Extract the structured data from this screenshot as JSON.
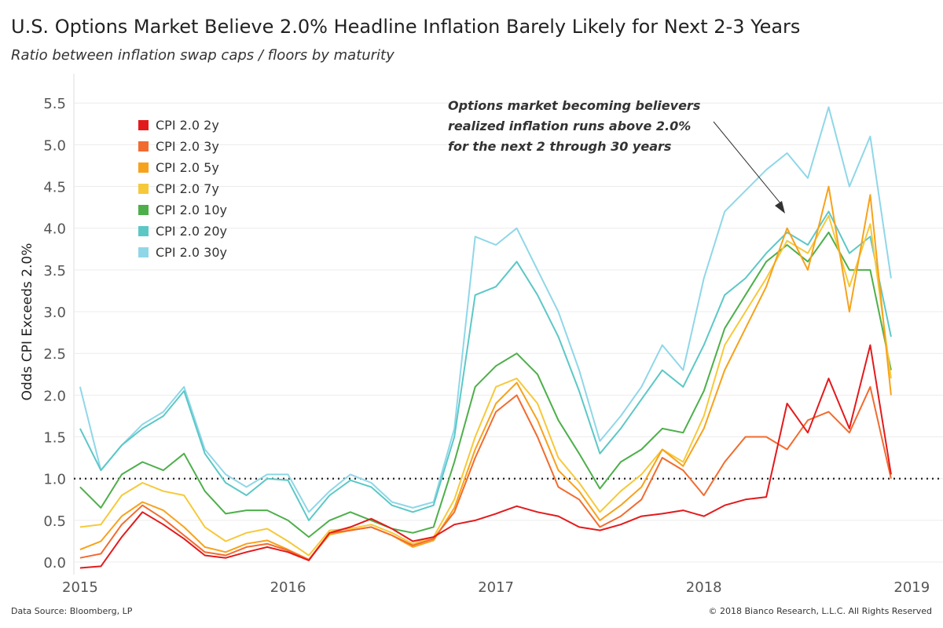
{
  "title": "U.S. Options Market Believe 2.0% Headline Inflation Barely Likely for Next 2-3 Years",
  "subtitle": "Ratio between inflation swap caps / floors by maturity",
  "footer": {
    "source": "Data Source: Bloomberg, LP",
    "copyright": "© 2018 Bianco Research, L.L.C. All Rights Reserved"
  },
  "annotation": {
    "lines": [
      "Options market becoming believers",
      "realized inflation runs above 2.0%",
      "for the next 2 through 30 years"
    ]
  },
  "chart_data": {
    "type": "line",
    "ylabel": "Odds CPI Exceeds 2.0%",
    "xlabel": "",
    "xlim": [
      2014.97,
      2019.15
    ],
    "ylim": [
      -0.15,
      5.85
    ],
    "x_ticks": [
      "2015",
      "2016",
      "2017",
      "2018",
      "2019"
    ],
    "y_ticks": [
      "0.0",
      "0.5",
      "1.0",
      "1.5",
      "2.0",
      "2.5",
      "3.0",
      "3.5",
      "4.0",
      "4.5",
      "5.0",
      "5.5"
    ],
    "reference_line": 1.0,
    "grid": true,
    "legend_position": "top-left",
    "x": [
      2015.0,
      2015.1,
      2015.2,
      2015.3,
      2015.4,
      2015.5,
      2015.6,
      2015.7,
      2015.8,
      2015.9,
      2016.0,
      2016.1,
      2016.2,
      2016.3,
      2016.4,
      2016.5,
      2016.6,
      2016.7,
      2016.8,
      2016.9,
      2017.0,
      2017.1,
      2017.2,
      2017.3,
      2017.4,
      2017.5,
      2017.6,
      2017.7,
      2017.8,
      2017.9,
      2018.0,
      2018.1,
      2018.2,
      2018.3,
      2018.4,
      2018.5,
      2018.6,
      2018.7,
      2018.8,
      2018.9
    ],
    "series": [
      {
        "name": "CPI 2.0 2y",
        "color": "#e31a1c",
        "values": [
          -0.07,
          -0.05,
          0.3,
          0.6,
          0.45,
          0.28,
          0.08,
          0.05,
          0.12,
          0.18,
          0.12,
          0.02,
          0.35,
          0.42,
          0.52,
          0.4,
          0.25,
          0.3,
          0.45,
          0.5,
          0.58,
          0.67,
          0.6,
          0.55,
          0.42,
          0.38,
          0.45,
          0.55,
          0.58,
          0.62,
          0.55,
          0.68,
          0.75,
          0.78,
          1.9,
          1.55,
          2.2,
          1.6,
          2.6,
          1.05
        ]
      },
      {
        "name": "CPI 2.0 3y",
        "color": "#f16b2f",
        "values": [
          0.05,
          0.1,
          0.45,
          0.68,
          0.52,
          0.32,
          0.12,
          0.08,
          0.18,
          0.22,
          0.14,
          0.03,
          0.35,
          0.38,
          0.42,
          0.32,
          0.2,
          0.28,
          0.6,
          1.25,
          1.8,
          2.0,
          1.5,
          0.9,
          0.75,
          0.42,
          0.55,
          0.75,
          1.25,
          1.1,
          0.8,
          1.2,
          1.5,
          1.5,
          1.35,
          1.7,
          1.8,
          1.55,
          2.1,
          1.0
        ]
      },
      {
        "name": "CPI 2.0 5y",
        "color": "#f7a21b",
        "values": [
          0.15,
          0.25,
          0.55,
          0.72,
          0.62,
          0.42,
          0.18,
          0.12,
          0.22,
          0.26,
          0.15,
          0.03,
          0.33,
          0.38,
          0.42,
          0.32,
          0.18,
          0.26,
          0.65,
          1.35,
          1.9,
          2.15,
          1.7,
          1.1,
          0.85,
          0.5,
          0.68,
          0.9,
          1.35,
          1.15,
          1.6,
          2.3,
          2.8,
          3.3,
          4.0,
          3.5,
          4.5,
          3.0,
          4.4,
          2.0
        ]
      },
      {
        "name": "CPI 2.0 7y",
        "color": "#f6c93a",
        "values": [
          0.42,
          0.45,
          0.8,
          0.95,
          0.85,
          0.8,
          0.42,
          0.25,
          0.35,
          0.4,
          0.25,
          0.08,
          0.38,
          0.4,
          0.45,
          0.35,
          0.22,
          0.3,
          0.75,
          1.5,
          2.1,
          2.2,
          1.9,
          1.25,
          0.95,
          0.6,
          0.85,
          1.05,
          1.35,
          1.2,
          1.75,
          2.6,
          3.0,
          3.4,
          3.85,
          3.7,
          4.15,
          3.3,
          4.05,
          2.2
        ]
      },
      {
        "name": "CPI 2.0 10y",
        "color": "#4daf4a",
        "values": [
          0.9,
          0.65,
          1.05,
          1.2,
          1.1,
          1.3,
          0.85,
          0.58,
          0.62,
          0.62,
          0.5,
          0.3,
          0.5,
          0.6,
          0.5,
          0.4,
          0.35,
          0.42,
          1.2,
          2.1,
          2.35,
          2.5,
          2.25,
          1.7,
          1.3,
          0.88,
          1.2,
          1.35,
          1.6,
          1.55,
          2.05,
          2.8,
          3.2,
          3.6,
          3.8,
          3.6,
          3.95,
          3.5,
          3.5,
          2.3
        ]
      },
      {
        "name": "CPI 2.0 20y",
        "color": "#5cc8c6",
        "values": [
          1.6,
          1.1,
          1.4,
          1.6,
          1.75,
          2.05,
          1.3,
          0.95,
          0.8,
          1.0,
          0.98,
          0.5,
          0.8,
          0.98,
          0.9,
          0.68,
          0.6,
          0.68,
          1.5,
          3.2,
          3.3,
          3.6,
          3.2,
          2.7,
          2.05,
          1.3,
          1.6,
          1.95,
          2.3,
          2.1,
          2.6,
          3.2,
          3.4,
          3.7,
          3.95,
          3.8,
          4.2,
          3.7,
          3.9,
          2.7
        ]
      },
      {
        "name": "CPI 2.0 30y",
        "color": "#8fd7e8",
        "values": [
          2.1,
          1.1,
          1.4,
          1.65,
          1.8,
          2.1,
          1.35,
          1.05,
          0.9,
          1.05,
          1.05,
          0.6,
          0.85,
          1.05,
          0.95,
          0.72,
          0.65,
          0.72,
          1.6,
          3.9,
          3.8,
          4.0,
          3.5,
          3.0,
          2.3,
          1.45,
          1.75,
          2.1,
          2.6,
          2.3,
          3.4,
          4.2,
          4.45,
          4.7,
          4.9,
          4.6,
          5.45,
          4.5,
          5.1,
          3.4
        ]
      }
    ]
  }
}
